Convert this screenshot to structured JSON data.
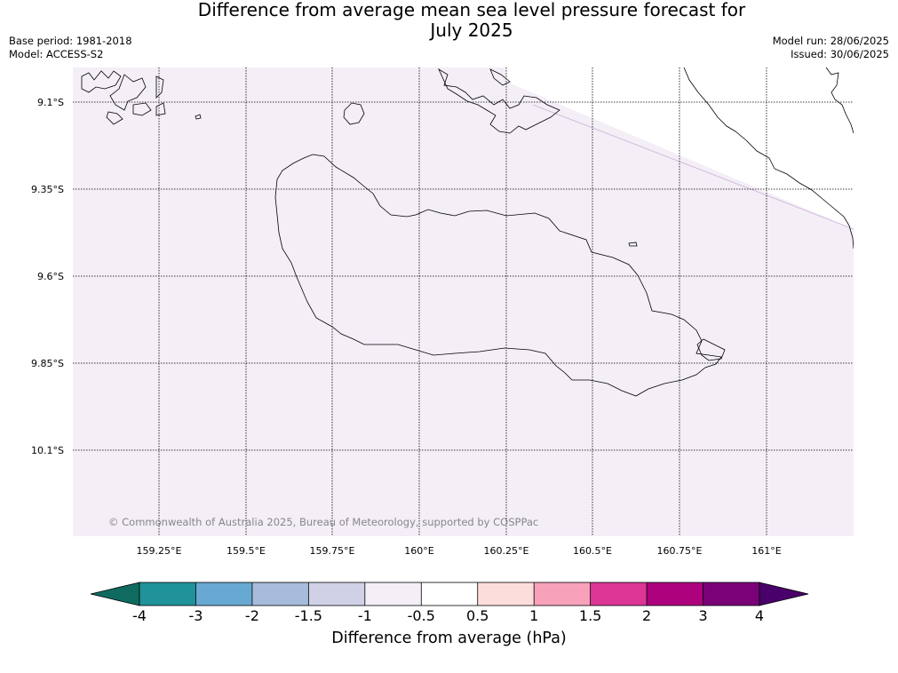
{
  "header": {
    "title_line1": "Difference from average mean sea level pressure forecast for",
    "title_line2": "July 2025",
    "base_period": "Base period: 1981-2018",
    "model": "Model: ACCESS-S2",
    "model_run": "Model run: 28/06/2025",
    "issued": "Issued: 30/06/2025"
  },
  "map": {
    "copyright": "© Commonwealth of Australia 2025, Bureau of Meteorology, supported by COSPPac",
    "lat_labels": [
      "9.1°S",
      "9.35°S",
      "9.6°S",
      "9.85°S",
      "10.1°S"
    ],
    "lon_labels": [
      "159.25°E",
      "159.5°E",
      "159.75°E",
      "160°E",
      "160.25°E",
      "160.5°E",
      "160.75°E",
      "161°E"
    ],
    "fill_color": "#f4eef7",
    "fill_category": "-1 to -0.5 hPa",
    "gridlines": true
  },
  "colorbar": {
    "title": "Difference from average (hPa)",
    "tick_labels": [
      "-4",
      "-3",
      "-2",
      "-1.5",
      "-1",
      "-0.5",
      "0.5",
      "1",
      "1.5",
      "2",
      "3",
      "4"
    ],
    "colors": [
      "#0f6b60",
      "#1f9399",
      "#67a9d3",
      "#a7bcdc",
      "#d0d1e6",
      "#f4eef7",
      "#ffffff",
      "#fddddc",
      "#f7a1bb",
      "#dd3596",
      "#ae017e",
      "#7a0177",
      "#49006a"
    ]
  }
}
